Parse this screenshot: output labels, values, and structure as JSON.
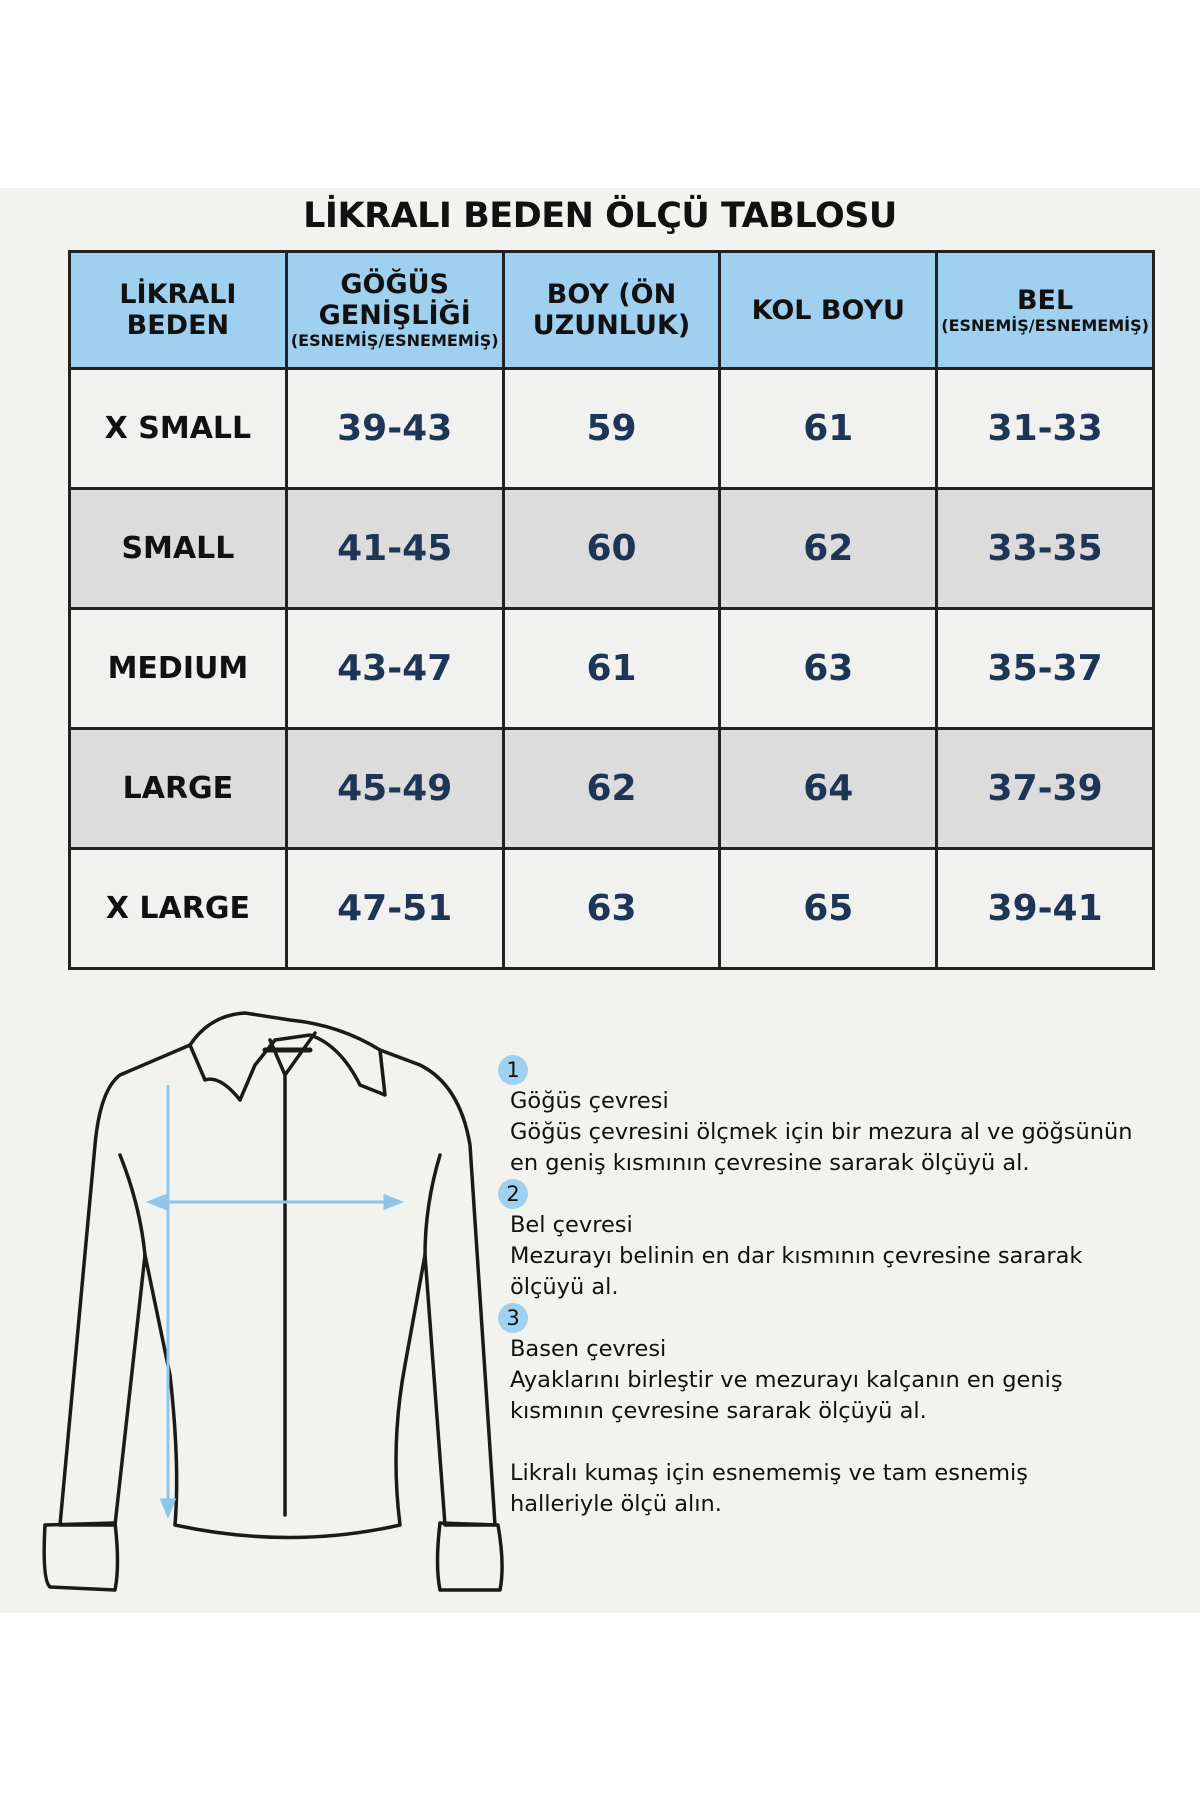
{
  "title": "LİKRALI BEDEN ÖLÇÜ TABLOSU",
  "table": {
    "headers": [
      {
        "label": "LİKRALI BEDEN",
        "sub": ""
      },
      {
        "label": "GÖĞÜS GENİŞLİĞİ",
        "sub": "(ESNEMİŞ/ESNEMEMİŞ)"
      },
      {
        "label": "BOY (ÖN UZUNLUK)",
        "sub": ""
      },
      {
        "label": "KOL BOYU",
        "sub": ""
      },
      {
        "label": "BEL",
        "sub": "(ESNEMİŞ/ESNEMEMİŞ)"
      }
    ],
    "rows": [
      [
        "X SMALL",
        "39-43",
        "59",
        "61",
        "31-33"
      ],
      [
        "SMALL",
        "41-45",
        "60",
        "62",
        "33-35"
      ],
      [
        "MEDIUM",
        "43-47",
        "61",
        "63",
        "35-37"
      ],
      [
        "LARGE",
        "45-49",
        "62",
        "64",
        "37-39"
      ],
      [
        "X LARGE",
        "47-51",
        "63",
        "65",
        "39-41"
      ]
    ]
  },
  "guide": {
    "steps": [
      {
        "num": "1",
        "title": "Göğüs çevresi",
        "text": "Göğüs çevresini ölçmek için bir mezura al ve göğsünün en geniş kısmının çevresine sararak ölçüyü al."
      },
      {
        "num": "2",
        "title": "Bel çevresi",
        "text": "Mezurayı belinin en dar kısmının çevresine sararak ölçüyü al."
      },
      {
        "num": "3",
        "title": "Basen çevresi",
        "text": "Ayaklarını birleştir ve mezurayı kalçanın en geniş kısmının çevresine sararak ölçüyü al."
      }
    ],
    "note": "Likralı kumaş için esnememiş ve tam esnemiş halleriyle ölçü alın."
  },
  "colors": {
    "header_bg": "#9fd0ef",
    "value_text": "#1f3556",
    "alt_row": "#dcdcdc",
    "arrow": "#8ec5ea"
  },
  "illustration": "shirt-measurement-diagram"
}
